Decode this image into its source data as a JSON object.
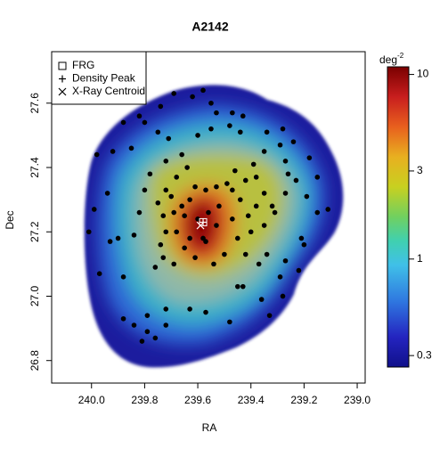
{
  "chart_data": {
    "type": "scatter",
    "title": "A2142",
    "xlabel": "RA",
    "ylabel": "Dec",
    "xlim": [
      240.15,
      238.97
    ],
    "ylim": [
      26.73,
      27.76
    ],
    "xticks": [
      {
        "value": 240,
        "label": "240.0"
      },
      239.8,
      239.6,
      239.4,
      239.2,
      {
        "value": 239,
        "label": "239.0"
      }
    ],
    "yticks": [
      26.8,
      {
        "value": 27,
        "label": "27.0"
      },
      27.2,
      27.4,
      27.6
    ],
    "point_color": "#000000",
    "points": {
      "x": [
        239.98,
        239.88,
        239.82,
        239.74,
        239.69,
        239.58,
        239.55,
        239.62,
        239.53,
        239.47,
        239.43,
        239.48,
        239.44,
        239.55,
        239.6,
        239.71,
        239.8,
        239.75,
        239.85,
        239.92,
        239.94,
        239.99,
        240.01,
        239.93,
        239.9,
        239.97,
        239.88,
        239.84,
        239.82,
        239.8,
        239.78,
        239.72,
        239.66,
        239.64,
        239.68,
        239.72,
        239.75,
        239.73,
        239.72,
        239.74,
        239.76,
        239.73,
        239.69,
        239.65,
        239.61,
        239.54,
        239.5,
        239.45,
        239.4,
        239.35,
        239.31,
        239.27,
        239.26,
        239.23,
        239.27,
        239.29,
        239.34,
        239.28,
        239.24,
        239.35,
        239.39,
        239.46,
        239.49,
        239.53,
        239.57,
        239.61,
        239.63,
        239.65,
        239.68,
        239.63,
        239.57,
        239.53,
        239.47,
        239.44,
        239.47,
        239.42,
        239.38,
        239.35,
        239.32,
        239.38,
        239.41,
        239.42,
        239.37,
        239.43,
        239.34,
        239.29,
        239.27,
        239.22,
        239.19,
        239.15,
        239.11,
        239.15,
        239.18,
        239.2,
        239.21,
        239.28,
        239.36,
        239.45,
        239.57,
        239.63,
        239.72,
        239.79,
        239.88,
        239.79,
        239.76,
        239.81,
        239.84,
        239.72,
        239.48,
        239.33,
        239.6,
        239.56,
        239.52,
        239.66,
        239.69,
        239.7,
        239.58
      ],
      "y": [
        27.44,
        27.54,
        27.56,
        27.59,
        27.63,
        27.64,
        27.6,
        27.62,
        27.57,
        27.57,
        27.56,
        27.53,
        27.51,
        27.52,
        27.5,
        27.49,
        27.54,
        27.51,
        27.46,
        27.45,
        27.32,
        27.27,
        27.2,
        27.17,
        27.18,
        27.07,
        27.06,
        27.19,
        27.26,
        27.33,
        27.38,
        27.42,
        27.44,
        27.4,
        27.37,
        27.33,
        27.29,
        27.25,
        27.2,
        27.16,
        27.09,
        27.12,
        27.1,
        27.15,
        27.12,
        27.1,
        27.13,
        27.18,
        27.2,
        27.22,
        27.26,
        27.32,
        27.38,
        27.36,
        27.42,
        27.47,
        27.51,
        27.52,
        27.48,
        27.45,
        27.41,
        27.39,
        27.35,
        27.34,
        27.33,
        27.34,
        27.3,
        27.25,
        27.2,
        27.18,
        27.17,
        27.22,
        27.24,
        27.3,
        27.33,
        27.36,
        27.37,
        27.32,
        27.28,
        27.28,
        27.25,
        27.13,
        27.1,
        27.03,
        27.13,
        27.06,
        27.11,
        27.08,
        27.31,
        27.26,
        27.27,
        27.37,
        27.43,
        27.16,
        27.18,
        27.0,
        26.99,
        27.03,
        26.95,
        26.96,
        26.96,
        26.94,
        26.93,
        26.89,
        26.87,
        26.86,
        26.91,
        26.91,
        26.92,
        26.94,
        27.24,
        27.26,
        27.28,
        27.28,
        27.26,
        27.31,
        27.18
      ]
    },
    "series": [
      {
        "name": "FRG",
        "marker": "square",
        "color": "#ffffff",
        "x": 239.58,
        "y": 27.23
      },
      {
        "name": "Density Peak",
        "marker": "plus",
        "color": "#ffffff",
        "x": 239.58,
        "y": 27.23
      },
      {
        "name": "X-Ray Centroid",
        "marker": "cross",
        "color": "#ffffff",
        "x": 239.59,
        "y": 27.22
      }
    ],
    "legend": "top-left",
    "colorbar": {
      "label": "deg",
      "label_sup": "-2",
      "log": true,
      "lim": [
        0.26,
        11
      ],
      "ticks": [
        0.3,
        1,
        3,
        10
      ]
    }
  }
}
